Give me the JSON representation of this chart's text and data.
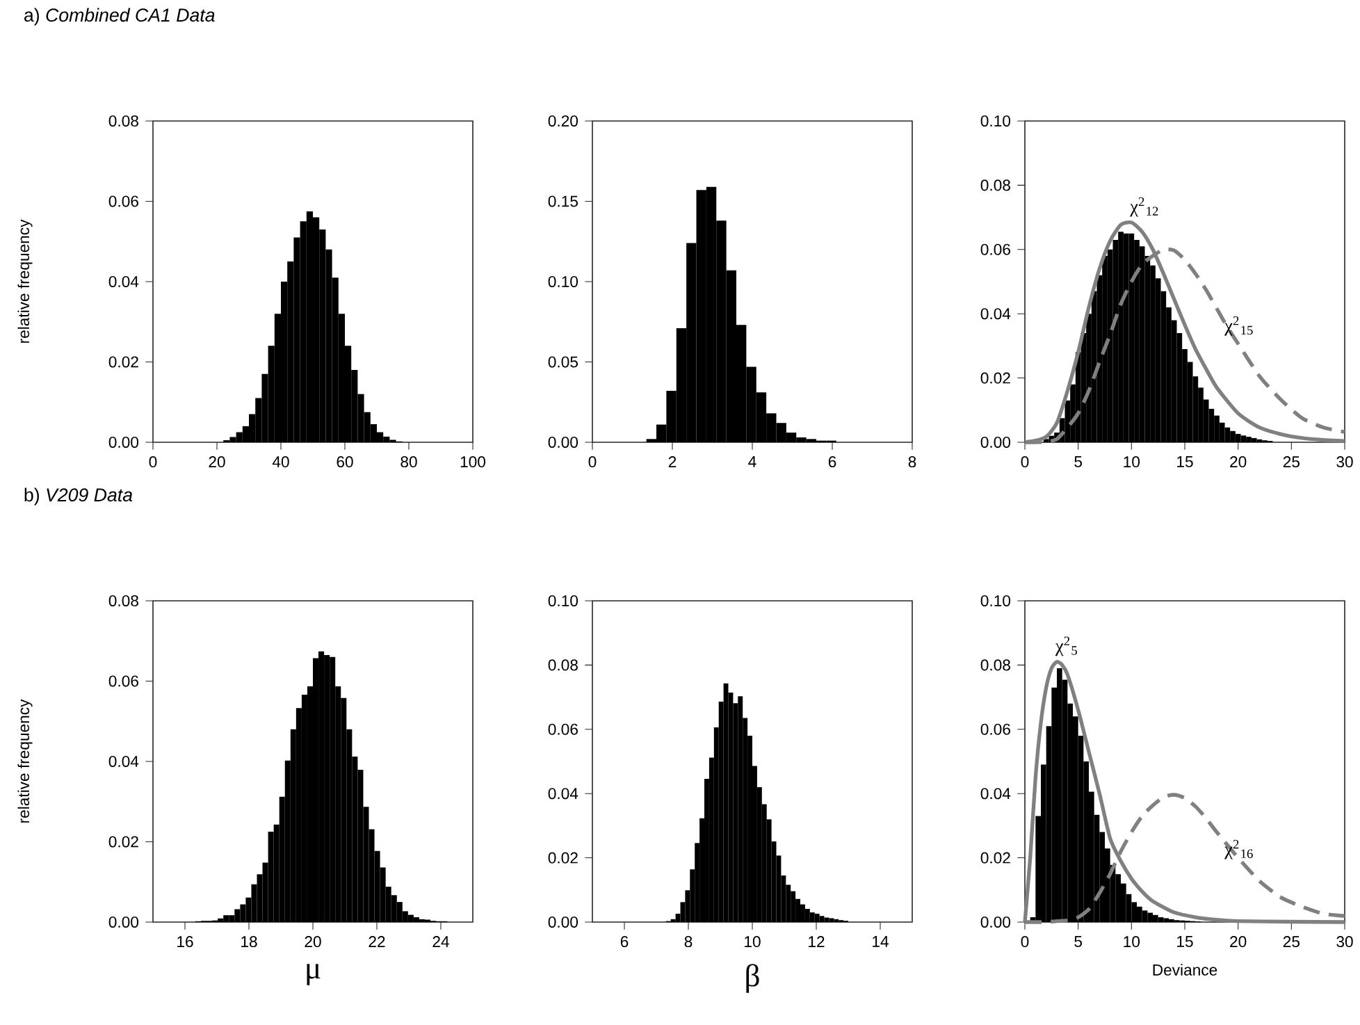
{
  "chart_data": [
    {
      "type": "histogram",
      "title": "a) *Combined CA1 Data*",
      "ylabel": "relative frequency",
      "color": "#000000",
      "bins": [
        22,
        24,
        26,
        28,
        30,
        32,
        34,
        36,
        38,
        40,
        42,
        44,
        46,
        48,
        50,
        52,
        54,
        56,
        58,
        60,
        62,
        64,
        66,
        68,
        70,
        72,
        74,
        76,
        78
      ],
      "values": [
        0.0005,
        0.0013,
        0.0025,
        0.004,
        0.007,
        0.011,
        0.017,
        0.024,
        0.032,
        0.04,
        0.045,
        0.051,
        0.055,
        0.0575,
        0.056,
        0.053,
        0.048,
        0.041,
        0.032,
        0.024,
        0.018,
        0.012,
        0.0075,
        0.0045,
        0.0025,
        0.0014,
        0.0006,
        0.0002
      ],
      "xlim": [
        0,
        100
      ],
      "xticks": [
        0,
        20,
        40,
        60,
        80,
        100
      ],
      "ylim": [
        0,
        0.08
      ],
      "yticks": [
        {
          "value": 0,
          "label": "0.00"
        },
        {
          "value": 0.02,
          "label": "0.02"
        },
        {
          "value": 0.04,
          "label": "0.04"
        },
        {
          "value": 0.06,
          "label": "0.06"
        },
        {
          "value": 0.08,
          "label": "0.08"
        }
      ]
    },
    {
      "type": "histogram",
      "color": "#000000",
      "bins": [
        1.35,
        1.6,
        1.85,
        2.1,
        2.35,
        2.6,
        2.85,
        3.1,
        3.35,
        3.6,
        3.85,
        4.1,
        4.35,
        4.6,
        4.85,
        5.1,
        5.35,
        5.6,
        5.85,
        6.1
      ],
      "values": [
        0.002,
        0.011,
        0.032,
        0.071,
        0.124,
        0.157,
        0.159,
        0.138,
        0.107,
        0.073,
        0.047,
        0.031,
        0.018,
        0.012,
        0.006,
        0.003,
        0.002,
        0.001,
        0.001
      ],
      "xlim": [
        0,
        8
      ],
      "xticks": [
        0,
        2,
        4,
        6,
        8
      ],
      "ylim": [
        0,
        0.2
      ],
      "yticks": [
        {
          "value": 0,
          "label": "0.00"
        },
        {
          "value": 0.05,
          "label": "0.05"
        },
        {
          "value": 0.1,
          "label": "0.10"
        },
        {
          "value": 0.15,
          "label": "0.15"
        },
        {
          "value": 0.2,
          "label": "0.20"
        }
      ]
    },
    {
      "type": "histogram",
      "color": "#000000",
      "bins": [
        0.75,
        1.25,
        1.75,
        2.25,
        2.75,
        3.25,
        3.75,
        4.25,
        4.75,
        5.25,
        5.75,
        6.25,
        6.75,
        7.25,
        7.75,
        8.25,
        8.75,
        9.25,
        9.75,
        10.25,
        10.75,
        11.25,
        11.75,
        12.25,
        12.75,
        13.25,
        13.75,
        14.25,
        14.75,
        15.25,
        15.75,
        16.25,
        16.75,
        17.25,
        17.75,
        18.25,
        18.75,
        19.25,
        19.75,
        20.25,
        20.75,
        21.25,
        21.75,
        22.25,
        22.75,
        23.25
      ],
      "values": [
        0.0005,
        null,
        0.001,
        0.002,
        0.003,
        0.0075,
        0.013,
        0.018,
        0.028,
        0.034,
        0.04,
        0.047,
        0.052,
        0.058,
        0.06,
        0.063,
        0.0655,
        0.065,
        0.065,
        0.063,
        0.061,
        0.058,
        0.055,
        0.051,
        0.047,
        0.042,
        0.038,
        0.034,
        0.029,
        0.025,
        0.0205,
        0.017,
        0.0133,
        0.0104,
        0.0083,
        0.0061,
        0.0046,
        0.0035,
        0.0026,
        0.0021,
        0.0017,
        0.0013,
        0.0009,
        0.0006,
        0.0004
      ],
      "series": [
        {
          "type": "line",
          "color": "#808080",
          "line_style": "solid",
          "x": [
            0,
            1,
            2,
            3,
            4,
            5,
            6,
            7,
            8,
            9,
            10,
            11,
            12,
            13,
            14,
            15,
            16,
            17,
            18,
            20,
            22,
            24,
            26,
            28,
            30
          ],
          "values": [
            0,
            0.0005,
            0.0017,
            0.006,
            0.016,
            0.028,
            0.042,
            0.054,
            0.0627,
            0.0677,
            0.0684,
            0.0655,
            0.06,
            0.0525,
            0.0445,
            0.0365,
            0.029,
            0.0228,
            0.017,
            0.009,
            0.0046,
            0.0025,
            0.0013,
            0.0007,
            0.0004
          ]
        },
        {
          "type": "line",
          "color": "#808080",
          "line_style": "dashed",
          "x": [
            0,
            1,
            2,
            3,
            4,
            5,
            6,
            7,
            8,
            9,
            10,
            11,
            12,
            13,
            14,
            15,
            16,
            17,
            18,
            19,
            20,
            22,
            24,
            26,
            28,
            30
          ],
          "values": [
            0,
            0,
            0.0001,
            0.001,
            0.0046,
            0.009,
            0.016,
            0.025,
            0.0336,
            0.043,
            0.05,
            0.0554,
            0.058,
            0.06,
            0.0597,
            0.0568,
            0.0525,
            0.0474,
            0.0416,
            0.0358,
            0.0307,
            0.0206,
            0.0133,
            0.0075,
            0.0046,
            0.0032
          ]
        }
      ],
      "annotations": [
        "χ$^{2}$$_{12}$",
        "χ$^{2}$$_{15}$"
      ],
      "xlim": [
        0,
        30
      ],
      "xticks": [
        0,
        5,
        10,
        15,
        20,
        25,
        30
      ],
      "ylim": [
        0,
        0.1
      ],
      "yticks": [
        {
          "value": 0,
          "label": "0.00"
        },
        {
          "value": 0.02,
          "label": "0.02"
        },
        {
          "value": 0.04,
          "label": "0.04"
        },
        {
          "value": 0.06,
          "label": "0.06"
        },
        {
          "value": 0.08,
          "label": "0.08"
        },
        {
          "value": 0.1,
          "label": "0.10"
        }
      ]
    },
    {
      "type": "histogram",
      "title": "b) *V209 Data*",
      "ylabel": "relative frequency",
      "xlabel": "μ",
      "color": "#000000",
      "bins": [
        16.325,
        16.5,
        16.675,
        16.85,
        17.025,
        17.2,
        17.375,
        17.55,
        17.725,
        17.9,
        18.075,
        18.25,
        18.425,
        18.6,
        18.775,
        18.95,
        19.125,
        19.3,
        19.475,
        19.65,
        19.825,
        20,
        20.175,
        20.35,
        20.525,
        20.7,
        20.875,
        21.05,
        21.225,
        21.4,
        21.575,
        21.75,
        21.925,
        22.1,
        22.275,
        22.45,
        22.625,
        22.8,
        22.975,
        23.15,
        23.325,
        23.5,
        23.675,
        23.85,
        24.025,
        24.2
      ],
      "values": [
        0.0002,
        0.0003,
        0.0003,
        0.0004,
        0.0009,
        0.0017,
        0.0017,
        0.0032,
        0.0044,
        0.0061,
        0.0094,
        0.0119,
        0.0148,
        0.0225,
        0.0243,
        0.0312,
        0.0402,
        0.048,
        0.0533,
        0.0566,
        0.0587,
        0.0657,
        0.0674,
        0.0665,
        0.066,
        0.0587,
        0.0558,
        0.048,
        0.0412,
        0.0379,
        0.0287,
        0.0231,
        0.0177,
        0.0136,
        0.0088,
        0.0067,
        0.005,
        0.0027,
        0.0018,
        0.0012,
        0.0007,
        0.0006,
        0.0003,
        0.0002,
        0.0002
      ],
      "xlim": [
        15,
        25
      ],
      "xticks": [
        16,
        18,
        20,
        22,
        24
      ],
      "ylim": [
        0,
        0.08
      ],
      "yticks": [
        {
          "value": 0,
          "label": "0.00"
        },
        {
          "value": 0.02,
          "label": "0.02"
        },
        {
          "value": 0.04,
          "label": "0.04"
        },
        {
          "value": 0.06,
          "label": "0.06"
        },
        {
          "value": 0.08,
          "label": "0.08"
        }
      ]
    },
    {
      "type": "histogram",
      "xlabel": "β",
      "color": "#000000",
      "bins": [
        7.3,
        7.45,
        7.6,
        7.75,
        7.9,
        8.05,
        8.2,
        8.35,
        8.5,
        8.65,
        8.8,
        8.95,
        9.1,
        9.25,
        9.4,
        9.55,
        9.7,
        9.85,
        10,
        10.15,
        10.3,
        10.45,
        10.6,
        10.75,
        10.9,
        11.05,
        11.2,
        11.35,
        11.5,
        11.65,
        11.8,
        11.95,
        12.1,
        12.25,
        12.4,
        12.55,
        12.7,
        12.85,
        13
      ],
      "values": [
        0.0003,
        0.0009,
        0.0026,
        0.0062,
        0.0099,
        0.0164,
        0.0246,
        0.0323,
        0.0446,
        0.0512,
        0.0606,
        0.0686,
        0.0743,
        0.0714,
        0.0681,
        0.0703,
        0.0635,
        0.058,
        0.0486,
        0.042,
        0.0367,
        0.032,
        0.0251,
        0.0207,
        0.0145,
        0.0116,
        0.0096,
        0.0072,
        0.0055,
        0.0041,
        0.003,
        0.0026,
        0.0019,
        0.0014,
        0.0012,
        0.0009,
        0.0006,
        0.0004
      ],
      "xlim": [
        5,
        15
      ],
      "xticks": [
        6,
        8,
        10,
        12,
        14
      ],
      "ylim": [
        0,
        0.1
      ],
      "yticks": [
        {
          "value": 0,
          "label": "0.00"
        },
        {
          "value": 0.02,
          "label": "0.02"
        },
        {
          "value": 0.04,
          "label": "0.04"
        },
        {
          "value": 0.06,
          "label": "0.06"
        },
        {
          "value": 0.08,
          "label": "0.08"
        },
        {
          "value": 0.1,
          "label": "0.10"
        }
      ]
    },
    {
      "type": "histogram",
      "xlabel": "Deviance",
      "color": "#000000",
      "bins": [
        0.5,
        1,
        1.5,
        2,
        2.5,
        3,
        3.5,
        4,
        4.5,
        5,
        5.5,
        6,
        6.5,
        7,
        7.5,
        8,
        8.5,
        9,
        9.5,
        10,
        10.5,
        11,
        11.5,
        12,
        12.5,
        13,
        13.5,
        14,
        14.5,
        15,
        15.5,
        16,
        16.5
      ],
      "values": [
        0.0015,
        0.033,
        0.049,
        0.061,
        0.073,
        0.079,
        0.0754,
        0.068,
        0.064,
        0.058,
        0.05,
        0.0406,
        0.0334,
        0.028,
        0.0229,
        0.0178,
        0.0149,
        0.012,
        0.0087,
        0.0062,
        0.0048,
        0.0036,
        0.0029,
        0.0022,
        0.0015,
        0.0012,
        0.0009,
        0.0006,
        0.0005,
        0.0004,
        0.0003,
        0.0002
      ],
      "series": [
        {
          "type": "line",
          "color": "#808080",
          "line_style": "solid",
          "x": [
            0,
            0.5,
            1,
            1.5,
            2,
            2.5,
            3,
            3.5,
            4,
            5,
            6,
            7,
            8,
            9,
            10,
            11,
            12,
            14,
            16,
            18,
            20,
            25,
            30
          ],
          "values": [
            0,
            0.02,
            0.045,
            0.062,
            0.073,
            0.079,
            0.081,
            0.08,
            0.077,
            0.066,
            0.053,
            0.04,
            0.026,
            0.019,
            0.0135,
            0.0095,
            0.0065,
            0.003,
            0.0015,
            0.0007,
            0.0003,
            0.0001,
            0
          ]
        },
        {
          "type": "line",
          "color": "#808080",
          "line_style": "dashed",
          "x": [
            0,
            2,
            3,
            4,
            5,
            6,
            7,
            8,
            9,
            10,
            11,
            12,
            13,
            14,
            15,
            16,
            17,
            18,
            20,
            22,
            24,
            26,
            28,
            30
          ],
          "values": [
            0,
            0,
            0.0003,
            0.0005,
            0.0015,
            0.004,
            0.009,
            0.015,
            0.022,
            0.028,
            0.033,
            0.0363,
            0.0389,
            0.0396,
            0.0386,
            0.036,
            0.0323,
            0.028,
            0.02,
            0.0128,
            0.0077,
            0.0048,
            0.0026,
            0.0019
          ]
        }
      ],
      "annotations": [
        "χ$^{2}$$_{5}$",
        "χ$^{2}$$_{16}$"
      ],
      "xlim": [
        0,
        30
      ],
      "xticks": [
        0,
        5,
        10,
        15,
        20,
        25,
        30
      ],
      "ylim": [
        0,
        0.1
      ],
      "yticks": [
        {
          "value": 0,
          "label": "0.00"
        },
        {
          "value": 0.02,
          "label": "0.02"
        },
        {
          "value": 0.04,
          "label": "0.04"
        },
        {
          "value": 0.06,
          "label": "0.06"
        },
        {
          "value": 0.08,
          "label": "0.08"
        },
        {
          "value": 0.1,
          "label": "0.10"
        }
      ]
    }
  ]
}
